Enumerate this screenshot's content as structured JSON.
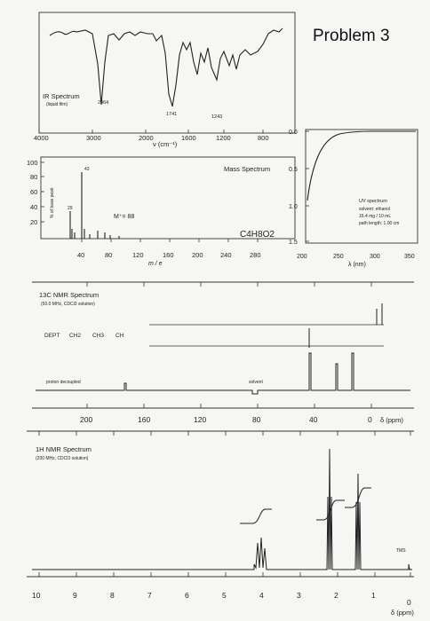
{
  "problem_title": "Problem 3",
  "ir": {
    "title": "IR Spectrum",
    "subtitle": "(liquid film)",
    "peak_labels": [
      "2964",
      "1741",
      "1243"
    ],
    "axis_ticks": [
      "4000",
      "3000",
      "2000",
      "1600",
      "1200",
      "800"
    ],
    "axis_label": "ν (cm⁻¹)"
  },
  "mass": {
    "title": "Mass Spectrum",
    "formula": "C4H8O2",
    "peak_labels": [
      "43",
      "29"
    ],
    "molecular_ion": "M⁺= 88",
    "y_label": "% of base peak",
    "y_ticks": [
      "100",
      "80",
      "60",
      "40",
      "20"
    ],
    "x_ticks": [
      "40",
      "80",
      "120",
      "160",
      "200",
      "240",
      "280"
    ],
    "x_label": "m / e"
  },
  "uv": {
    "title": "UV spectrum",
    "info_line1": "solvent: ethanol",
    "info_line2": "15.4 mg / 10 mL",
    "info_line3": "path length: 1.00 cm",
    "y_ticks": [
      "0.0",
      "0.5",
      "1.0",
      "1.5"
    ],
    "x_ticks": [
      "200",
      "250",
      "300",
      "350"
    ],
    "x_label": "λ (nm)"
  },
  "c13": {
    "title": "13C NMR Spectrum",
    "subtitle": "(50.0 MHz, CDCl3 solution)",
    "dept_label": "DEPT",
    "dept_ch2": "CH2",
    "dept_ch3": "CH3",
    "dept_ch": "CH",
    "decoupled_label": "proton decoupled",
    "solvent_label": "solvent",
    "x_ticks": [
      "200",
      "160",
      "120",
      "80",
      "40",
      "0"
    ],
    "x_label": "δ (ppm)"
  },
  "h1": {
    "title": "1H NMR Spectrum",
    "subtitle": "(200 MHz, CDCl3 solution)",
    "tms_label": "TMS",
    "x_ticks": [
      "10",
      "9",
      "8",
      "7",
      "6",
      "5",
      "4",
      "3",
      "2",
      "1",
      "0"
    ],
    "x_label": "δ (ppm)"
  }
}
